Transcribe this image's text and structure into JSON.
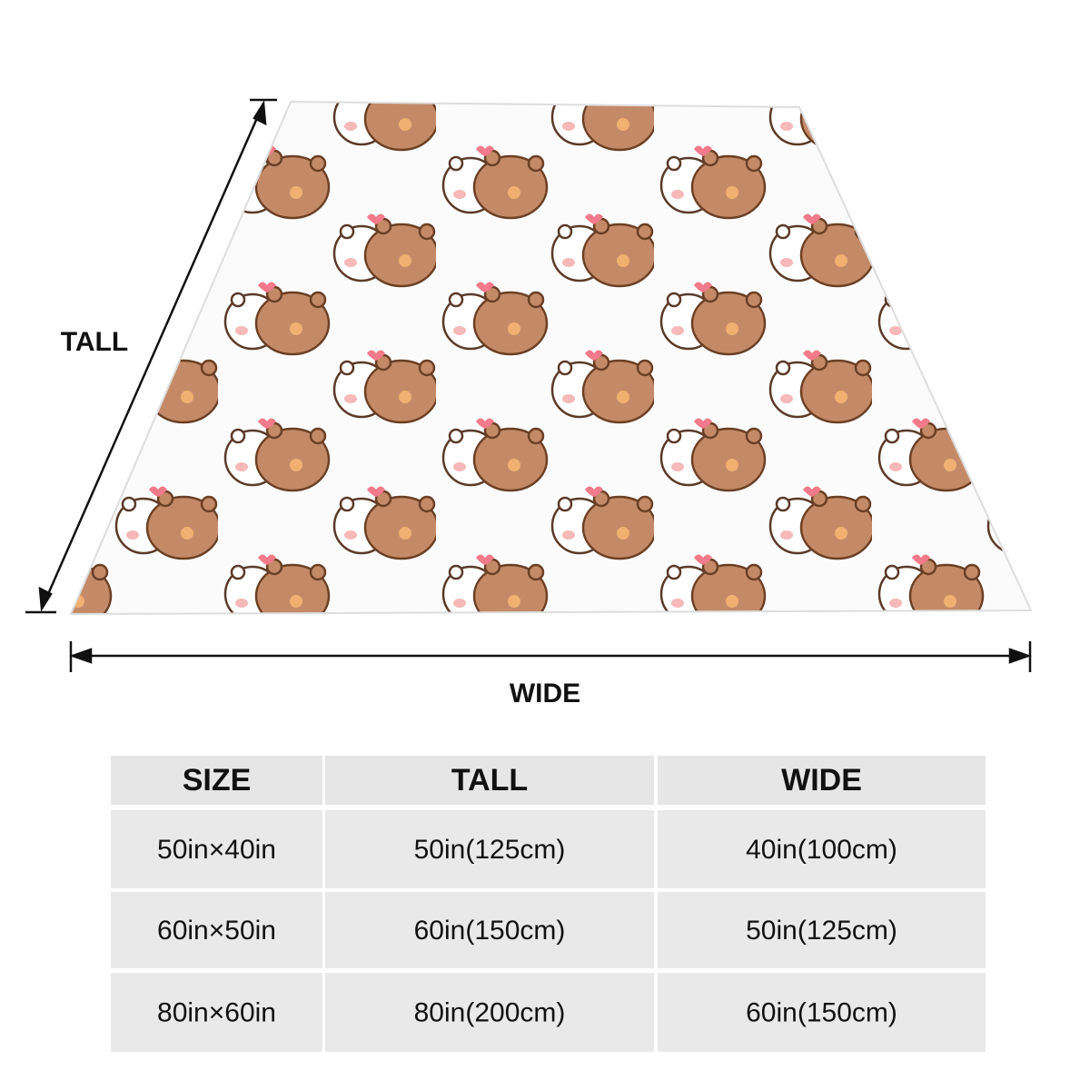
{
  "dimension_labels": {
    "tall": "TALL",
    "wide": "WIDE"
  },
  "table": {
    "header": [
      "SIZE",
      "TALL",
      "WIDE"
    ],
    "rows": [
      [
        "50in×40in",
        "50in(125cm)",
        "40in(100cm)"
      ],
      [
        "60in×50in",
        "60in(150cm)",
        "50in(125cm)"
      ],
      [
        "80in×60in",
        "80in(200cm)",
        "60in(150cm)"
      ]
    ]
  }
}
